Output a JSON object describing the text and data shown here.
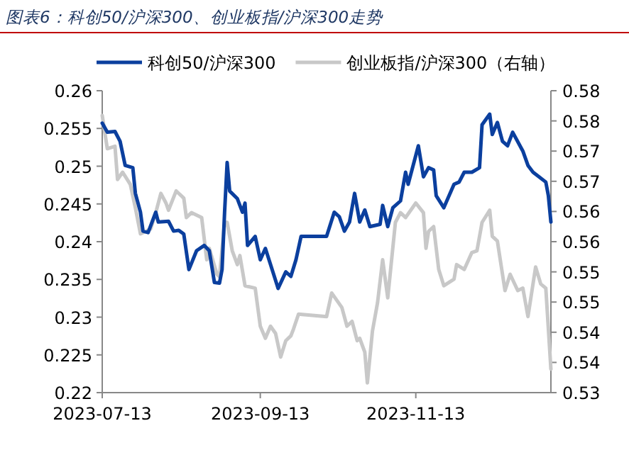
{
  "chart_data": {
    "type": "line",
    "title": "图表6：科创50/沪深300、创业板指/沪深300走势",
    "legend": "top",
    "xlim": [
      "2023-07-13",
      "2024-01-05"
    ],
    "xticks": [
      "2023-07-13",
      "2023-09-13",
      "2023-11-13"
    ],
    "ylim": [
      0.22,
      0.26
    ],
    "yticks": [
      0.22,
      0.225,
      0.23,
      0.235,
      0.24,
      0.245,
      0.25,
      0.255,
      0.26
    ],
    "y2lim": [
      0.53,
      0.58
    ],
    "y2ticks": [
      {
        "value": 0.53,
        "label": "0.53"
      },
      {
        "value": 0.535,
        "label": "0.54"
      },
      {
        "value": 0.54,
        "label": "0.54"
      },
      {
        "value": 0.545,
        "label": "0.55"
      },
      {
        "value": 0.55,
        "label": "0.55"
      },
      {
        "value": 0.555,
        "label": "0.56"
      },
      {
        "value": 0.56,
        "label": "0.56"
      },
      {
        "value": 0.565,
        "label": "0.57"
      },
      {
        "value": 0.57,
        "label": "0.57"
      },
      {
        "value": 0.575,
        "label": "0.58"
      },
      {
        "value": 0.58,
        "label": "0.58"
      }
    ],
    "series": [
      {
        "name": "科创50/沪深300",
        "color": "#0b3f9e",
        "x": [
          "2023-07-13",
          "2023-07-15",
          "2023-07-18",
          "2023-07-20",
          "2023-07-22",
          "2023-07-25",
          "2023-07-26",
          "2023-07-28",
          "2023-07-29",
          "2023-07-31",
          "2023-08-03",
          "2023-08-04",
          "2023-08-08",
          "2023-08-10",
          "2023-08-12",
          "2023-08-14",
          "2023-08-16",
          "2023-08-19",
          "2023-08-22",
          "2023-08-24",
          "2023-08-26",
          "2023-08-28",
          "2023-08-29",
          "2023-08-30",
          "2023-08-31",
          "2023-09-01",
          "2023-09-04",
          "2023-09-06",
          "2023-09-07",
          "2023-09-08",
          "2023-09-11",
          "2023-09-13",
          "2023-09-15",
          "2023-09-17",
          "2023-09-20",
          "2023-09-23",
          "2023-09-25",
          "2023-09-27",
          "2023-09-29",
          "2023-10-09",
          "2023-10-12",
          "2023-10-14",
          "2023-10-16",
          "2023-10-18",
          "2023-10-20",
          "2023-10-22",
          "2023-10-24",
          "2023-10-26",
          "2023-10-30",
          "2023-10-31",
          "2023-11-02",
          "2023-11-04",
          "2023-11-07",
          "2023-11-09",
          "2023-11-10",
          "2023-11-14",
          "2023-11-16",
          "2023-11-18",
          "2023-11-20",
          "2023-11-21",
          "2023-11-24",
          "2023-11-28",
          "2023-11-30",
          "2023-12-02",
          "2023-12-05",
          "2023-12-08",
          "2023-12-09",
          "2023-12-12",
          "2023-12-13",
          "2023-12-15",
          "2023-12-17",
          "2023-12-19",
          "2023-12-21",
          "2023-12-25",
          "2023-12-27",
          "2023-12-29",
          "2024-01-03",
          "2024-01-04",
          "2024-01-05"
        ],
        "values": [
          0.2557,
          0.2545,
          0.2546,
          0.2533,
          0.2501,
          0.2498,
          0.2464,
          0.2439,
          0.2414,
          0.2412,
          0.2439,
          0.2426,
          0.2427,
          0.2414,
          0.2415,
          0.241,
          0.2363,
          0.2388,
          0.2395,
          0.2388,
          0.2346,
          0.2345,
          0.2363,
          0.2439,
          0.2505,
          0.2467,
          0.2457,
          0.2439,
          0.2451,
          0.2395,
          0.2407,
          0.2376,
          0.2391,
          0.237,
          0.2338,
          0.236,
          0.2354,
          0.2376,
          0.2407,
          0.2407,
          0.2439,
          0.2433,
          0.2414,
          0.2426,
          0.2464,
          0.2426,
          0.2442,
          0.242,
          0.2423,
          0.2448,
          0.242,
          0.2445,
          0.2454,
          0.2492,
          0.2476,
          0.2527,
          0.2486,
          0.2498,
          0.2495,
          0.2461,
          0.2445,
          0.2476,
          0.2479,
          0.2492,
          0.2492,
          0.2498,
          0.2555,
          0.2569,
          0.2542,
          0.2558,
          0.2533,
          0.2527,
          0.2545,
          0.252,
          0.2501,
          0.2492,
          0.2479,
          0.2461,
          0.2426
        ]
      },
      {
        "name": "创业板指/沪深300（右轴）",
        "color": "#c8c8c8",
        "axis": "y2",
        "x": [
          "2023-07-13",
          "2023-07-15",
          "2023-07-18",
          "2023-07-19",
          "2023-07-21",
          "2023-07-24",
          "2023-07-26",
          "2023-07-28",
          "2023-08-01",
          "2023-08-03",
          "2023-08-05",
          "2023-08-07",
          "2023-08-08",
          "2023-08-11",
          "2023-08-14",
          "2023-08-15",
          "2023-08-17",
          "2023-08-21",
          "2023-08-23",
          "2023-08-24",
          "2023-08-27",
          "2023-08-28",
          "2023-08-30",
          "2023-08-31",
          "2023-09-02",
          "2023-09-04",
          "2023-09-05",
          "2023-09-07",
          "2023-09-11",
          "2023-09-13",
          "2023-09-15",
          "2023-09-17",
          "2023-09-19",
          "2023-09-21",
          "2023-09-23",
          "2023-09-25",
          "2023-09-26",
          "2023-09-28",
          "2023-10-09",
          "2023-10-11",
          "2023-10-15",
          "2023-10-17",
          "2023-10-19",
          "2023-10-21",
          "2023-10-22",
          "2023-10-24",
          "2023-10-25",
          "2023-10-27",
          "2023-10-29",
          "2023-10-31",
          "2023-11-02",
          "2023-11-05",
          "2023-11-07",
          "2023-11-09",
          "2023-11-13",
          "2023-11-16",
          "2023-11-17",
          "2023-11-18",
          "2023-11-20",
          "2023-11-22",
          "2023-11-24",
          "2023-11-28",
          "2023-11-29",
          "2023-12-02",
          "2023-12-05",
          "2023-12-07",
          "2023-12-09",
          "2023-12-12",
          "2023-12-13",
          "2023-12-15",
          "2023-12-18",
          "2023-12-20",
          "2023-12-23",
          "2023-12-25",
          "2023-12-27",
          "2023-12-30",
          "2024-01-01",
          "2024-01-03",
          "2024-01-05"
        ],
        "values": [
          0.5759,
          0.5704,
          0.5708,
          0.5653,
          0.5665,
          0.5645,
          0.5606,
          0.5563,
          0.5571,
          0.5598,
          0.563,
          0.5614,
          0.5602,
          0.5634,
          0.5622,
          0.559,
          0.5598,
          0.559,
          0.552,
          0.5539,
          0.5496,
          0.5492,
          0.5582,
          0.5582,
          0.5535,
          0.5512,
          0.5527,
          0.5477,
          0.5473,
          0.541,
          0.539,
          0.541,
          0.5398,
          0.5359,
          0.5386,
          0.5394,
          0.5405,
          0.543,
          0.5426,
          0.5465,
          0.5441,
          0.541,
          0.5418,
          0.5386,
          0.539,
          0.5367,
          0.5316,
          0.5402,
          0.5449,
          0.552,
          0.5457,
          0.5582,
          0.5598,
          0.559,
          0.5614,
          0.5598,
          0.5539,
          0.5567,
          0.5575,
          0.5504,
          0.5477,
          0.5488,
          0.5512,
          0.5504,
          0.5532,
          0.5535,
          0.5582,
          0.5602,
          0.5559,
          0.5551,
          0.5469,
          0.5496,
          0.5469,
          0.5473,
          0.5426,
          0.5508,
          0.548,
          0.5473,
          0.5339
        ]
      }
    ]
  }
}
